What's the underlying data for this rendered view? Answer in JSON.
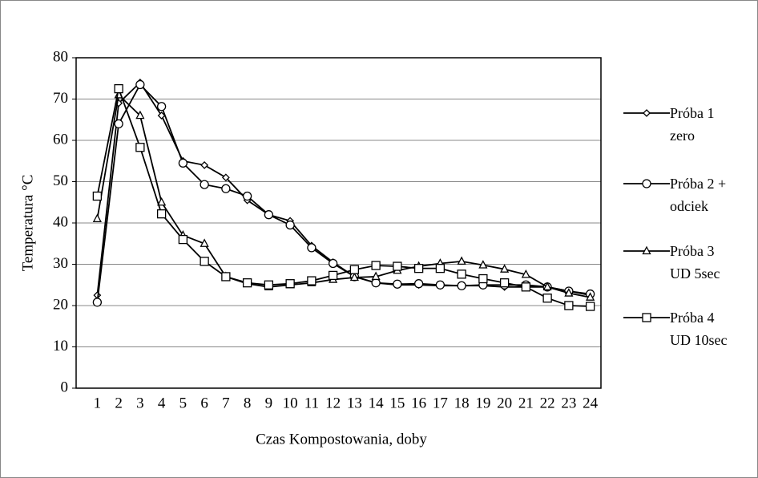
{
  "chart_data": {
    "type": "line",
    "x_label": "Czas Kompostowania, doby",
    "y_label": "Temperatura °C",
    "categories": [
      "1",
      "2",
      "3",
      "4",
      "5",
      "6",
      "7",
      "8",
      "9",
      "10",
      "11",
      "12",
      "13",
      "14",
      "15",
      "16",
      "17",
      "18",
      "19",
      "20",
      "21",
      "22",
      "23",
      "24"
    ],
    "ylim": [
      0,
      80
    ],
    "yticks": [
      0,
      10,
      20,
      30,
      40,
      50,
      60,
      70,
      80
    ],
    "grid": true,
    "legend": "right",
    "series": [
      {
        "name": "Próba 1\nzero",
        "color": "#000000",
        "marker": "diamond",
        "values": [
          22.5,
          69,
          74,
          66,
          55,
          54,
          51,
          45.5,
          42,
          40.5,
          34.5,
          30.5,
          27,
          25.5,
          25,
          25,
          24.8,
          24.8,
          24.8,
          24.5,
          24.5,
          24.5,
          23.5,
          22.5
        ]
      },
      {
        "name": "Próba 2 +\nodciek",
        "color": "#000000",
        "marker": "circle",
        "values": [
          20.8,
          64,
          73.5,
          68.2,
          54.5,
          49.3,
          48.3,
          46.5,
          42,
          39.5,
          34,
          30.2,
          27,
          25.5,
          25.2,
          25.3,
          25,
          24.8,
          25,
          25,
          25,
          24.5,
          23.5,
          22.8
        ]
      },
      {
        "name": "Próba 3\nUD 5sec",
        "color": "#000000",
        "marker": "triangle",
        "values": [
          41,
          71,
          66,
          45,
          37,
          35,
          27,
          25.3,
          24.5,
          25,
          25.5,
          26.3,
          26.8,
          27,
          28.5,
          29.5,
          30.2,
          30.7,
          29.8,
          28.8,
          27.5,
          24.5,
          23,
          22
        ]
      },
      {
        "name": "Próba 4\nUD 10sec",
        "color": "#000000",
        "marker": "square",
        "values": [
          46.5,
          72.5,
          58.3,
          42.2,
          36,
          30.7,
          27,
          25.5,
          25,
          25.3,
          26,
          27.3,
          28.7,
          29.7,
          29.5,
          29,
          29,
          27.6,
          26.5,
          25.5,
          24.5,
          21.8,
          20,
          19.8
        ]
      }
    ]
  }
}
